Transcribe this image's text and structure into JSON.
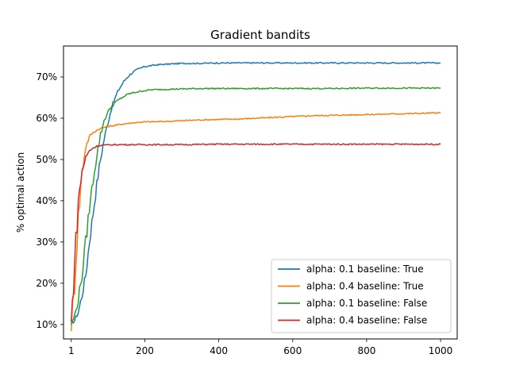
{
  "chart_data": {
    "type": "line",
    "title": "Gradient bandits",
    "xlabel": "",
    "ylabel": "% optimal action",
    "xlim": [
      -20,
      1045
    ],
    "ylim": [
      0.065,
      0.775
    ],
    "xticks": [
      1,
      200,
      400,
      600,
      800,
      1000
    ],
    "xtick_labels": [
      "1",
      "200",
      "400",
      "600",
      "800",
      "1000"
    ],
    "yticks": [
      0.1,
      0.2,
      0.3,
      0.4,
      0.5,
      0.6,
      0.7
    ],
    "ytick_labels": [
      "10%",
      "20%",
      "30%",
      "40%",
      "50%",
      "60%",
      "70%"
    ],
    "grid": false,
    "legend_position": "lower-right",
    "series": [
      {
        "name": "alpha: 0.1 baseline: True",
        "color": "#1f77b4",
        "x": [
          1,
          10,
          20,
          30,
          40,
          50,
          60,
          70,
          80,
          90,
          100,
          110,
          120,
          130,
          140,
          150,
          160,
          170,
          180,
          190,
          200,
          220,
          240,
          260,
          280,
          300,
          350,
          400,
          450,
          500,
          600,
          700,
          800,
          900,
          1000
        ],
        "y": [
          0.1,
          0.11,
          0.13,
          0.17,
          0.22,
          0.3,
          0.37,
          0.44,
          0.5,
          0.55,
          0.59,
          0.625,
          0.65,
          0.67,
          0.685,
          0.697,
          0.706,
          0.713,
          0.718,
          0.722,
          0.725,
          0.728,
          0.73,
          0.731,
          0.732,
          0.733,
          0.733,
          0.734,
          0.734,
          0.734,
          0.734,
          0.734,
          0.734,
          0.734,
          0.734
        ]
      },
      {
        "name": "alpha: 0.4 baseline: True",
        "color": "#ff7f0e",
        "x": [
          1,
          10,
          20,
          30,
          40,
          50,
          60,
          70,
          80,
          90,
          100,
          120,
          140,
          160,
          180,
          200,
          250,
          300,
          350,
          400,
          450,
          500,
          550,
          600,
          650,
          700,
          750,
          800,
          850,
          900,
          950,
          1000
        ],
        "y": [
          0.1,
          0.2,
          0.36,
          0.47,
          0.53,
          0.556,
          0.565,
          0.571,
          0.575,
          0.578,
          0.58,
          0.583,
          0.586,
          0.588,
          0.59,
          0.591,
          0.592,
          0.594,
          0.596,
          0.597,
          0.598,
          0.6,
          0.602,
          0.604,
          0.606,
          0.607,
          0.608,
          0.609,
          0.61,
          0.611,
          0.612,
          0.613
        ]
      },
      {
        "name": "alpha: 0.1 baseline: False",
        "color": "#2ca02c",
        "x": [
          1,
          10,
          20,
          30,
          40,
          50,
          60,
          70,
          80,
          90,
          100,
          110,
          120,
          130,
          140,
          150,
          160,
          180,
          200,
          220,
          250,
          300,
          350,
          400,
          500,
          600,
          700,
          800,
          900,
          1000
        ],
        "y": [
          0.1,
          0.12,
          0.16,
          0.22,
          0.3,
          0.38,
          0.45,
          0.51,
          0.56,
          0.595,
          0.615,
          0.628,
          0.638,
          0.645,
          0.651,
          0.656,
          0.66,
          0.664,
          0.667,
          0.669,
          0.67,
          0.671,
          0.672,
          0.672,
          0.672,
          0.672,
          0.672,
          0.673,
          0.673,
          0.673
        ]
      },
      {
        "name": "alpha: 0.4 baseline: False",
        "color": "#d62728",
        "x": [
          1,
          10,
          20,
          30,
          40,
          50,
          60,
          70,
          80,
          90,
          100,
          120,
          140,
          160,
          200,
          250,
          300,
          400,
          500,
          600,
          700,
          800,
          900,
          1000
        ],
        "y": [
          0.1,
          0.25,
          0.4,
          0.47,
          0.505,
          0.521,
          0.528,
          0.532,
          0.534,
          0.535,
          0.535,
          0.536,
          0.536,
          0.536,
          0.536,
          0.536,
          0.536,
          0.537,
          0.537,
          0.537,
          0.537,
          0.537,
          0.537,
          0.537
        ]
      }
    ]
  }
}
